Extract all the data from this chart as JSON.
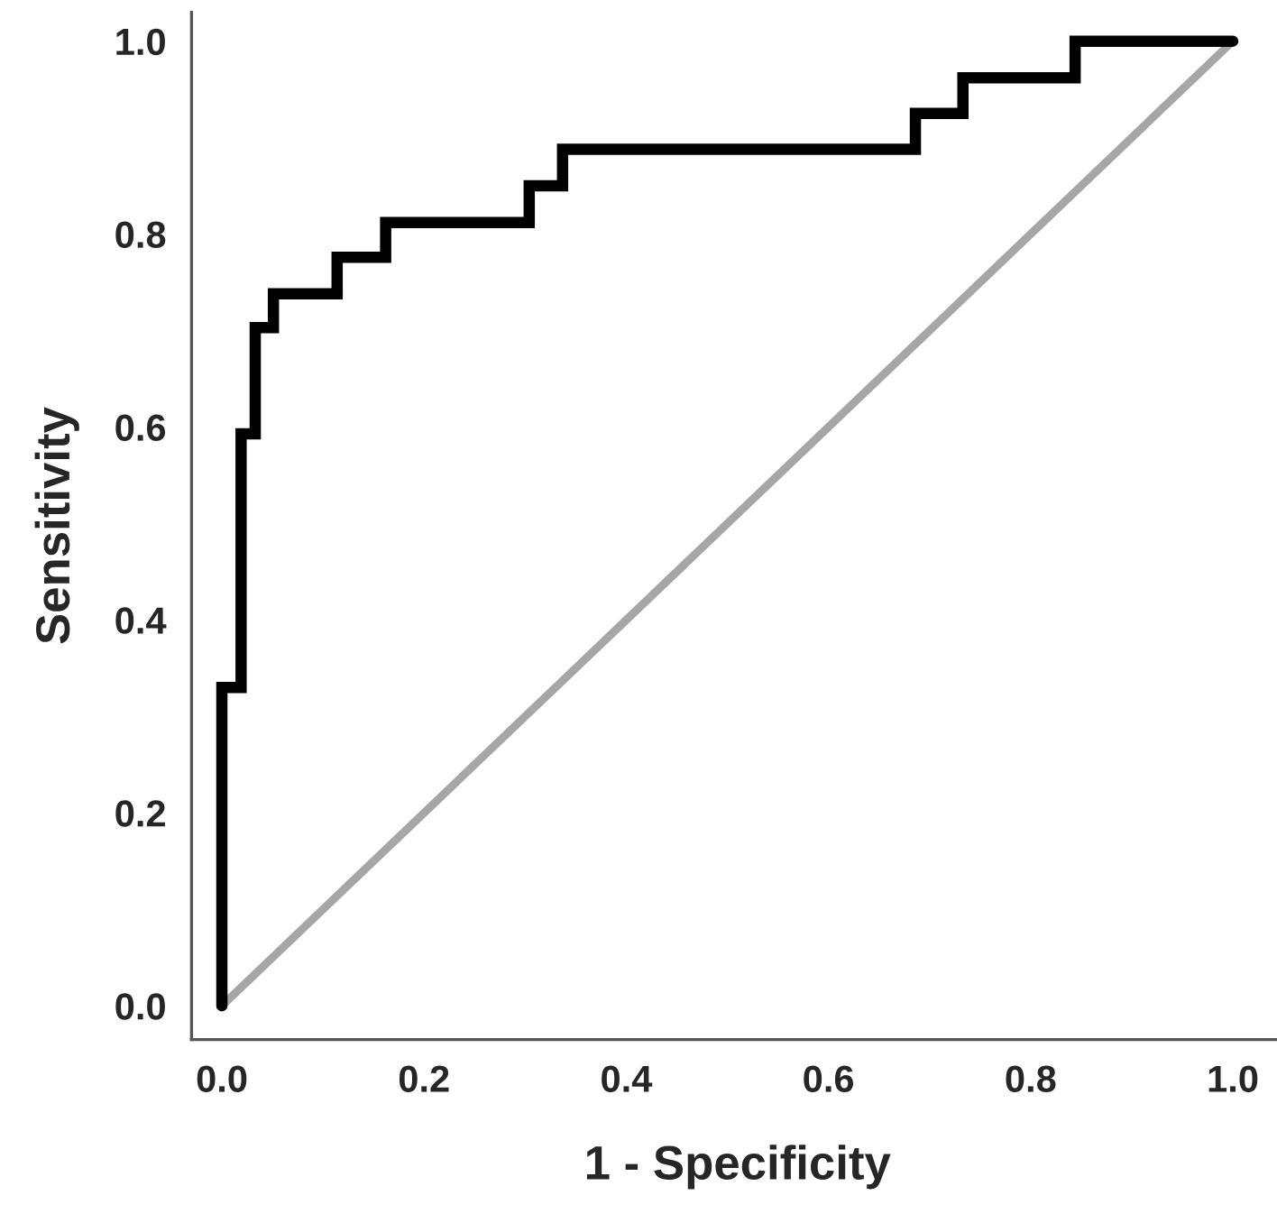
{
  "chart_data": {
    "type": "step",
    "xlabel": "1 - Specificity",
    "ylabel": "Sensitivity",
    "xlim": [
      -0.03,
      1.05
    ],
    "ylim": [
      -0.035,
      1.03
    ],
    "xticks": [
      {
        "value": 0,
        "label": "0.0"
      },
      {
        "value": 0.2,
        "label": "0.2"
      },
      {
        "value": 0.4,
        "label": "0.4"
      },
      {
        "value": 0.6,
        "label": "0.6"
      },
      {
        "value": 0.8,
        "label": "0.8"
      },
      {
        "value": 1,
        "label": "1.0"
      }
    ],
    "yticks": [
      {
        "value": 0,
        "label": "0.0"
      },
      {
        "value": 0.2,
        "label": "0.2"
      },
      {
        "value": 0.4,
        "label": "0.4"
      },
      {
        "value": 0.6,
        "label": "0.6"
      },
      {
        "value": 0.8,
        "label": "0.8"
      },
      {
        "value": 1,
        "label": "1.0"
      }
    ],
    "grid": false,
    "legend": false,
    "series": [
      {
        "type": "line",
        "color": "#a6a6a6",
        "x": [
          0,
          1
        ],
        "values": [
          0,
          1
        ]
      },
      {
        "color": "#000000",
        "x": [
          0,
          0,
          0.019,
          0.033,
          0.051,
          0.114,
          0.162,
          0.304,
          0.337,
          0.686,
          0.733,
          0.844,
          1.0
        ],
        "values": [
          0,
          0.33,
          0.593,
          0.703,
          0.738,
          0.776,
          0.812,
          0.85,
          0.888,
          0.925,
          0.962,
          1.0,
          1.0
        ]
      }
    ]
  }
}
